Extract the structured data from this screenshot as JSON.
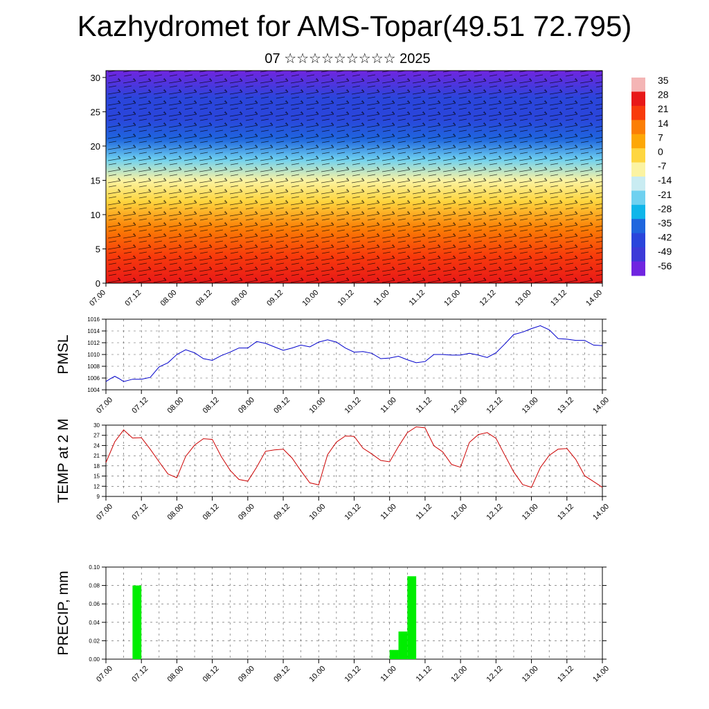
{
  "title": "Kazhydromet for AMS-Topar(49.51 72.795)",
  "subtitle": "07 ☆☆☆☆☆☆☆☆☆ 2025",
  "time_ticks": [
    "07.00",
    "07.12",
    "08.00",
    "08.12",
    "09.00",
    "09.12",
    "10.00",
    "10.12",
    "11.00",
    "11.12",
    "12.00",
    "12.12",
    "13.00",
    "13.12",
    "14.00"
  ],
  "chart_data": [
    {
      "type": "heatmap",
      "name": "upper-air temperature and wind cross-section",
      "x_ticks": [
        "07.00",
        "07.12",
        "08.00",
        "08.12",
        "09.00",
        "09.12",
        "10.00",
        "10.12",
        "11.00",
        "11.12",
        "12.00",
        "12.12",
        "13.00",
        "13.12",
        "14.00"
      ],
      "y_ticks": [
        0,
        5,
        10,
        15,
        20,
        25,
        30
      ],
      "ylim": [
        0,
        31
      ],
      "colorbar": {
        "labels": [
          "35",
          "28",
          "21",
          "14",
          "7",
          "0",
          "-7",
          "-14",
          "-21",
          "-28",
          "-35",
          "-42",
          "-49",
          "-56"
        ],
        "colors": [
          "#f4b5b5",
          "#e81818",
          "#f83b0b",
          "#fb7e05",
          "#fda706",
          "#fed640",
          "#fbf3a2",
          "#c9ecf2",
          "#6fd1f0",
          "#0fb6ea",
          "#1f66de",
          "#2a45db",
          "#3c3ad8",
          "#7025e0"
        ]
      },
      "level_temps": [
        {
          "km": 0,
          "t": 27
        },
        {
          "km": 4,
          "t": 18
        },
        {
          "km": 8,
          "t": 8
        },
        {
          "km": 12,
          "t": -2
        },
        {
          "km": 15,
          "t": -10
        },
        {
          "km": 18,
          "t": -22
        },
        {
          "km": 21,
          "t": -35
        },
        {
          "km": 24,
          "t": -45
        },
        {
          "km": 27,
          "t": -48
        },
        {
          "km": 31,
          "t": -56
        }
      ],
      "wind_barbs": "dense black wind barbs over the whole panel"
    },
    {
      "type": "line",
      "ylabel": "PMSL",
      "ylim": [
        1004,
        1016
      ],
      "y_ticks": [
        1004,
        1006,
        1008,
        1010,
        1012,
        1014,
        1016
      ],
      "x_ticks": [
        "07.00",
        "07.12",
        "08.00",
        "08.12",
        "09.00",
        "09.12",
        "10.00",
        "10.12",
        "11.00",
        "11.12",
        "12.00",
        "12.12",
        "13.00",
        "13.12",
        "14.00"
      ],
      "color": "#0000cc",
      "x": [
        0,
        1.5,
        3,
        4.5,
        6,
        9,
        12,
        15,
        18,
        21,
        24,
        27,
        30,
        33,
        36,
        39,
        42,
        45,
        48,
        51,
        54,
        57,
        60,
        63,
        66,
        69,
        72,
        75,
        78,
        81,
        84,
        87,
        90,
        93,
        96,
        99,
        102,
        105,
        108,
        111,
        114,
        117,
        120,
        123,
        126,
        129,
        132,
        135,
        138,
        141,
        144,
        147,
        150,
        153,
        156,
        159,
        162,
        165,
        168
      ],
      "values": [
        1005.4,
        1005.9,
        1006.3,
        1005.9,
        1005.4,
        1005.8,
        1005.8,
        1006.1,
        1007.9,
        1008.6,
        1010.0,
        1010.8,
        1010.3,
        1009.3,
        1009.0,
        1009.8,
        1010.4,
        1011.1,
        1011.1,
        1012.2,
        1011.9,
        1011.3,
        1010.7,
        1011.1,
        1011.6,
        1011.3,
        1012.1,
        1012.5,
        1012.1,
        1011.1,
        1010.4,
        1010.5,
        1010.2,
        1009.3,
        1009.4,
        1009.7,
        1009.1,
        1008.6,
        1008.8,
        1010.0,
        1010.0,
        1009.9,
        1009.9,
        1010.2,
        1009.9,
        1009.5,
        1010.3,
        1011.8,
        1013.4,
        1013.8,
        1014.4,
        1014.9,
        1014.2,
        1012.7,
        1012.6,
        1012.4,
        1012.4,
        1011.6,
        1011.5
      ]
    },
    {
      "type": "line",
      "ylabel": "TEMP at 2 M",
      "ylim": [
        9,
        30
      ],
      "y_ticks": [
        9,
        12,
        15,
        18,
        21,
        24,
        27,
        30
      ],
      "x_ticks": [
        "07.00",
        "07.12",
        "08.00",
        "08.12",
        "09.00",
        "09.12",
        "10.00",
        "10.12",
        "11.00",
        "11.12",
        "12.00",
        "12.12",
        "13.00",
        "13.12",
        "14.00"
      ],
      "color": "#cc0000",
      "x": [
        0,
        3,
        6,
        9,
        12,
        15,
        18,
        21,
        24,
        27,
        30,
        33,
        36,
        39,
        42,
        45,
        48,
        51,
        54,
        57,
        60,
        63,
        66,
        69,
        72,
        75,
        78,
        81,
        84,
        87,
        90,
        93,
        96,
        99,
        102,
        105,
        108,
        111,
        114,
        117,
        120,
        123,
        126,
        129,
        132,
        135,
        138,
        141,
        144,
        147,
        150,
        153,
        156,
        159,
        162,
        165,
        168
      ],
      "values": [
        19.0,
        25.1,
        28.6,
        26.2,
        26.3,
        22.9,
        19.2,
        15.6,
        14.5,
        20.8,
        24.1,
        26.0,
        25.8,
        20.8,
        16.7,
        14.0,
        13.5,
        17.6,
        22.3,
        22.7,
        22.9,
        20.3,
        16.5,
        13.0,
        12.4,
        21.3,
        25.0,
        26.8,
        26.7,
        23.2,
        21.5,
        19.6,
        19.2,
        23.7,
        27.8,
        29.5,
        29.2,
        23.9,
        22.1,
        18.4,
        17.6,
        24.9,
        27.2,
        27.8,
        26.1,
        21.1,
        16.2,
        12.5,
        11.7,
        17.5,
        21.1,
        22.9,
        23.1,
        19.9,
        15.1,
        13.4,
        11.7
      ]
    },
    {
      "type": "bar",
      "ylabel": "PRECIP, mm",
      "ylim": [
        0,
        0.1
      ],
      "y_ticks": [
        "0.00",
        "0.02",
        "0.04",
        "0.06",
        "0.08",
        "0.10"
      ],
      "x_ticks": [
        "07.00",
        "07.12",
        "08.00",
        "08.12",
        "09.00",
        "09.12",
        "10.00",
        "10.12",
        "11.00",
        "11.12",
        "12.00",
        "12.12",
        "13.00",
        "13.12",
        "14.00"
      ],
      "color": "#00ee00",
      "bars": [
        {
          "x_start": 9,
          "x_end": 12,
          "value": 0.08
        },
        {
          "x_start": 96,
          "x_end": 99,
          "value": 0.01
        },
        {
          "x_start": 99,
          "x_end": 102,
          "value": 0.03
        },
        {
          "x_start": 102,
          "x_end": 105,
          "value": 0.09
        }
      ]
    }
  ]
}
